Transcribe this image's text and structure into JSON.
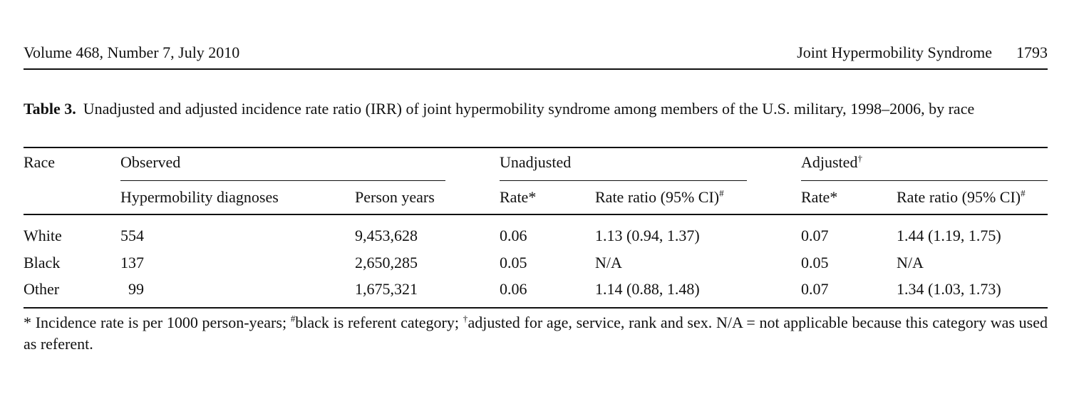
{
  "running_header": {
    "left": "Volume 468, Number 7, July 2010",
    "journal_short": "Joint Hypermobility Syndrome",
    "page_number": "1793"
  },
  "caption": {
    "label": "Table 3.",
    "text": "Unadjusted and adjusted incidence rate ratio (IRR) of joint hypermobility syndrome among members of the U.S. military, 1998–2006, by race"
  },
  "table": {
    "group_headers": {
      "race": "Race",
      "observed": "Observed",
      "unadjusted": "Unadjusted",
      "adjusted": "Adjusted",
      "adjusted_mark": "†"
    },
    "sub_headers": {
      "diagnoses": "Hypermobility diagnoses",
      "person_years": "Person years",
      "unadj_rate": "Rate*",
      "unadj_ratio": "Rate ratio (95% CI)",
      "unadj_ratio_mark": "#",
      "adj_rate": "Rate*",
      "adj_ratio": "Rate ratio (95% CI)",
      "adj_ratio_mark": "#"
    },
    "rows": [
      {
        "race": "White",
        "diagnoses": "554",
        "person_years": "9,453,628",
        "unadj_rate": "0.06",
        "unadj_ratio": "1.13 (0.94, 1.37)",
        "adj_rate": "0.07",
        "adj_ratio": "1.44 (1.19, 1.75)"
      },
      {
        "race": "Black",
        "diagnoses": "137",
        "person_years": "2,650,285",
        "unadj_rate": "0.05",
        "unadj_ratio": "N/A",
        "adj_rate": "0.05",
        "adj_ratio": "N/A"
      },
      {
        "race": "Other",
        "diagnoses": "99",
        "person_years": "1,675,321",
        "unadj_rate": "0.06",
        "unadj_ratio": "1.14 (0.88, 1.48)",
        "adj_rate": "0.07",
        "adj_ratio": "1.34 (1.03, 1.73)"
      }
    ]
  },
  "footnote": {
    "part1": "* Incidence rate is per 1000 person-years; ",
    "mark1": "#",
    "part2": "black is referent category; ",
    "mark2": "†",
    "part3": "adjusted for age, service, rank and sex. N/A = not applicable because this category was used as referent."
  }
}
